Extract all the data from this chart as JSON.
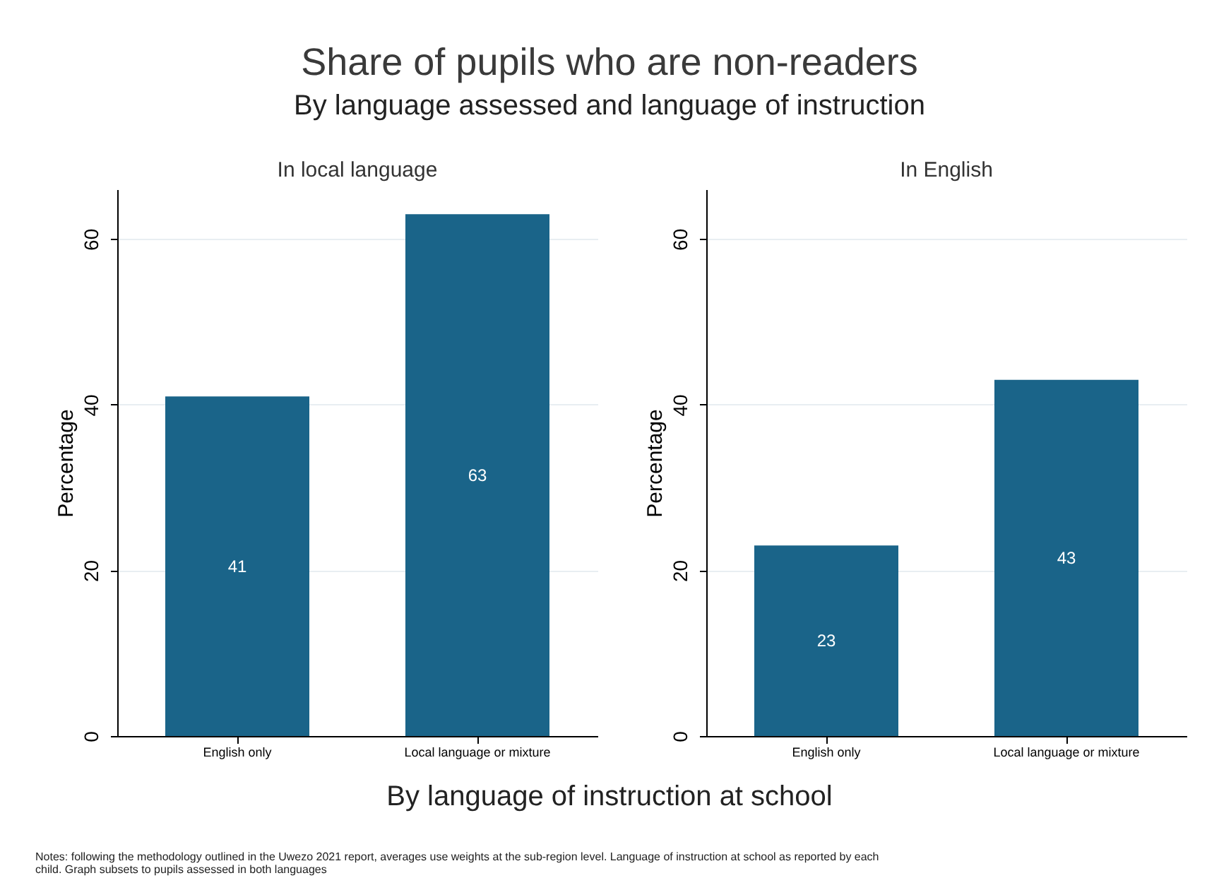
{
  "chart_data": [
    {
      "type": "other",
      "title": "Share of pupils who are non-readers",
      "subtitle": "By language assessed and language of instruction",
      "xlabel": "By language of instruction at school",
      "annotations": [
        "Notes: following the methodology outlined in the Uwezo 2021 report, averages use weights at the sub-region level. Language of instruction at school as reported by each child. Graph subsets to pupils assessed in both languages"
      ]
    },
    {
      "type": "bar",
      "title": "In local language",
      "ylabel": "Percentage",
      "categories": [
        "English only",
        "Local language or mixture"
      ],
      "values": [
        41,
        63
      ],
      "color": "#1a6489",
      "ylim": [
        0,
        66
      ],
      "yticks": [
        0,
        20,
        40,
        60
      ],
      "grid": "y",
      "data_labels": true
    },
    {
      "type": "bar",
      "title": "In English",
      "ylabel": "Percentage",
      "categories": [
        "English only",
        "Local language or mixture"
      ],
      "values": [
        23,
        43
      ],
      "color": "#1a6489",
      "ylim": [
        0,
        66
      ],
      "yticks": [
        0,
        20,
        40,
        60
      ],
      "grid": "y",
      "data_labels": true
    }
  ]
}
